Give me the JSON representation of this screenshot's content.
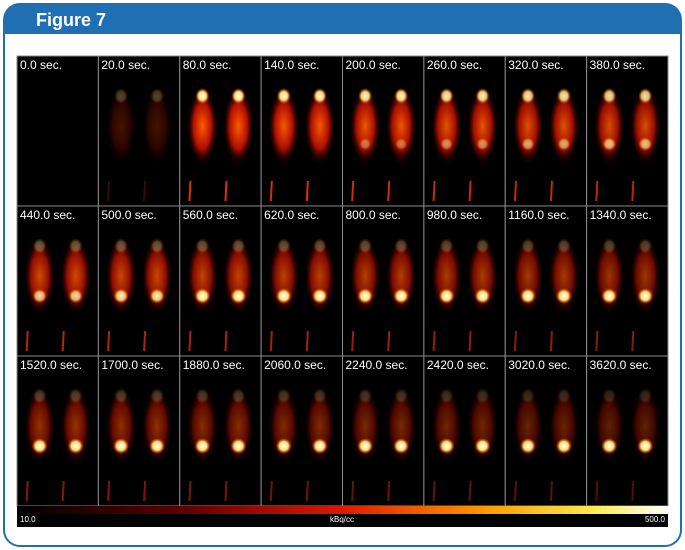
{
  "header": {
    "title": "Figure 7"
  },
  "frames": [
    "0.0 sec.",
    "20.0 sec.",
    "80.0 sec.",
    "140.0 sec.",
    "200.0 sec.",
    "260.0 sec.",
    "320.0 sec.",
    "380.0 sec.",
    "440.0 sec.",
    "500.0 sec.",
    "560.0 sec.",
    "620.0 sec.",
    "800.0 sec.",
    "980.0 sec.",
    "1160.0 sec.",
    "1340.0 sec.",
    "1520.0 sec.",
    "1700.0 sec.",
    "1880.0 sec.",
    "2060.0 sec.",
    "2240.0 sec.",
    "2420.0 sec.",
    "3020.0 sec.",
    "3620.0 sec."
  ],
  "colorbar": {
    "min_label": "10.0",
    "unit": "kBq/cc",
    "max_label": "500.0"
  }
}
